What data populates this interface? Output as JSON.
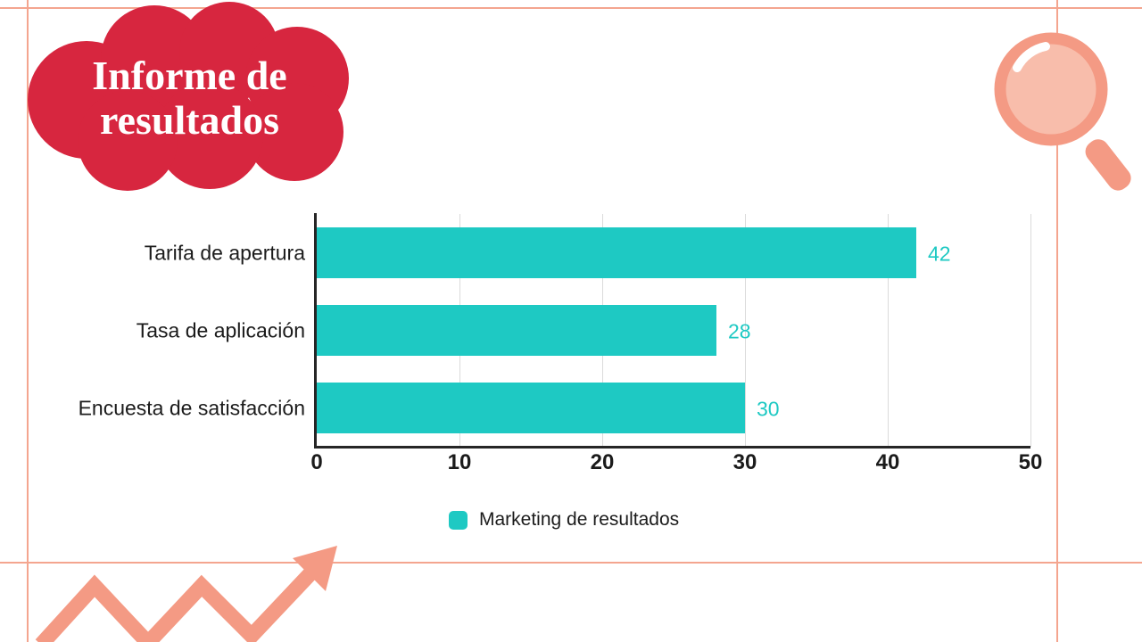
{
  "page": {
    "title_line1": "Informe de",
    "title_line2": "resultados"
  },
  "colors": {
    "accent_red": "#d7263f",
    "accent_salmon": "#f49a84",
    "frame_line": "#f4a58f",
    "accent_teal": "#1ec9c3",
    "text_dark": "#1b1b1b",
    "gridline": "#dbdbdb"
  },
  "decorations": {
    "magnifier_icon": "magnifier-icon",
    "zigzag_arrow_icon": "zigzag-arrow-icon"
  },
  "chart_data": {
    "type": "bar",
    "orientation": "horizontal",
    "title": "",
    "categories": [
      "Tarifa de apertura",
      "Tasa de aplicación",
      "Encuesta de satisfacción"
    ],
    "series": [
      {
        "name": "Marketing de resultados",
        "values": [
          42,
          28,
          30
        ]
      }
    ],
    "value_labels": [
      "42",
      "28",
      "30"
    ],
    "x_ticks": [
      0,
      10,
      20,
      30,
      40,
      50
    ],
    "xlim": [
      0,
      50
    ],
    "grid": "vertical",
    "legend": {
      "label": "Marketing de resultados",
      "position": "bottom"
    },
    "bar_color": "#1ec9c3"
  }
}
